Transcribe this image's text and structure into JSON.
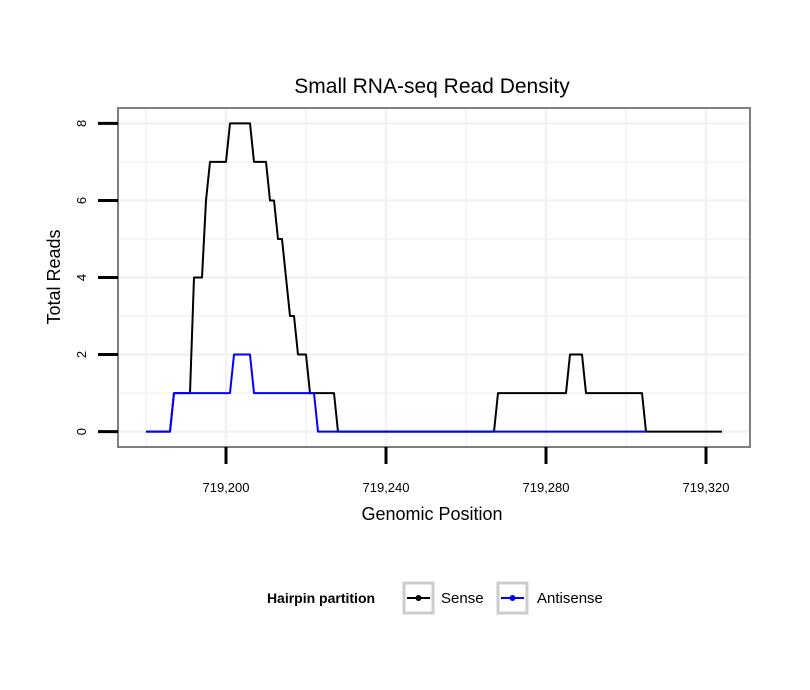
{
  "chart_data": {
    "type": "line",
    "title": "Small RNA-seq Read Density",
    "xlabel": "Genomic Position",
    "ylabel": "Total Reads",
    "xlim": [
      719173,
      719331
    ],
    "ylim": [
      -0.4,
      8.4
    ],
    "x_ticks": [
      719200,
      719240,
      719280,
      719320
    ],
    "x_tick_labels": [
      "719,200",
      "719,240",
      "719,280",
      "719,320"
    ],
    "y_ticks": [
      0,
      2,
      4,
      6,
      8
    ],
    "y_tick_labels": [
      "0",
      "2",
      "4",
      "6",
      "8"
    ],
    "grid": true,
    "legend": {
      "title": "Hairpin partition",
      "position": "bottom"
    },
    "series": [
      {
        "name": "Sense",
        "color": "#000000",
        "points": [
          [
            719180,
            0
          ],
          [
            719186,
            0
          ],
          [
            719187,
            1
          ],
          [
            719191,
            1
          ],
          [
            719192,
            4
          ],
          [
            719194,
            4
          ],
          [
            719195,
            6
          ],
          [
            719196,
            7
          ],
          [
            719200,
            7
          ],
          [
            719201,
            8
          ],
          [
            719206,
            8
          ],
          [
            719207,
            7
          ],
          [
            719210,
            7
          ],
          [
            719211,
            6
          ],
          [
            719212,
            6
          ],
          [
            719213,
            5
          ],
          [
            719214,
            5
          ],
          [
            719215,
            4
          ],
          [
            719216,
            3
          ],
          [
            719217,
            3
          ],
          [
            719218,
            2
          ],
          [
            719220,
            2
          ],
          [
            719221,
            1
          ],
          [
            719227,
            1
          ],
          [
            719228,
            0
          ],
          [
            719267,
            0
          ],
          [
            719268,
            1
          ],
          [
            719285,
            1
          ],
          [
            719286,
            2
          ],
          [
            719289,
            2
          ],
          [
            719290,
            1
          ],
          [
            719304,
            1
          ],
          [
            719305,
            0
          ],
          [
            719324,
            0
          ]
        ]
      },
      {
        "name": "Antisense",
        "color": "#0000ff",
        "points": [
          [
            719180,
            0
          ],
          [
            719186,
            0
          ],
          [
            719187,
            1
          ],
          [
            719201,
            1
          ],
          [
            719202,
            2
          ],
          [
            719206,
            2
          ],
          [
            719207,
            1
          ],
          [
            719222,
            1
          ],
          [
            719223,
            0
          ],
          [
            719305,
            0
          ]
        ]
      }
    ]
  }
}
